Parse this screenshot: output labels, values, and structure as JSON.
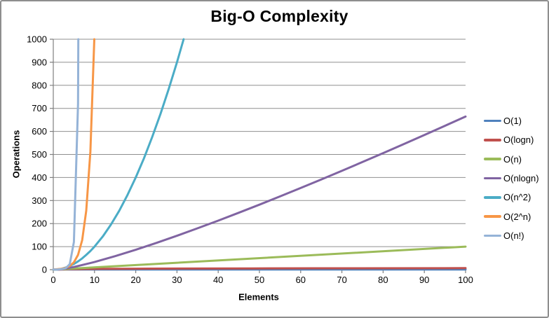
{
  "chart_data": {
    "type": "line",
    "title": "Big-O Complexity",
    "xlabel": "Elements",
    "ylabel": "Operations",
    "xlim": [
      0,
      100
    ],
    "ylim": [
      0,
      1000
    ],
    "xticks": [
      0,
      10,
      20,
      30,
      40,
      50,
      60,
      70,
      80,
      90,
      100
    ],
    "yticks": [
      0,
      100,
      200,
      300,
      400,
      500,
      600,
      700,
      800,
      900,
      1000
    ],
    "grid": "horizontal-only",
    "grid_color": "#8f8f8f",
    "axis_color": "#7f7f7f",
    "tick_label_color": "#000000",
    "legend_position": "right",
    "series": [
      {
        "name": "O(1)",
        "color": "#4F81BD",
        "points": [
          [
            0,
            1
          ],
          [
            100,
            1
          ]
        ]
      },
      {
        "name": "O(logn)",
        "color": "#C0504D",
        "points": [
          [
            1,
            0
          ],
          [
            2,
            1
          ],
          [
            3,
            1.58
          ],
          [
            4,
            2
          ],
          [
            6,
            2.58
          ],
          [
            8,
            3
          ],
          [
            12,
            3.58
          ],
          [
            16,
            4
          ],
          [
            24,
            4.58
          ],
          [
            32,
            5
          ],
          [
            48,
            5.58
          ],
          [
            64,
            6
          ],
          [
            100,
            6.64
          ]
        ]
      },
      {
        "name": "O(n)",
        "color": "#9BBB59",
        "points": [
          [
            0,
            0
          ],
          [
            100,
            100
          ]
        ]
      },
      {
        "name": "O(nlogn)",
        "color": "#8064A2",
        "points": [
          [
            1,
            0
          ],
          [
            2,
            2
          ],
          [
            5,
            11.6
          ],
          [
            10,
            33.2
          ],
          [
            15,
            58.6
          ],
          [
            20,
            86.4
          ],
          [
            25,
            116.1
          ],
          [
            30,
            147.2
          ],
          [
            35,
            179.5
          ],
          [
            40,
            212.9
          ],
          [
            45,
            247.2
          ],
          [
            50,
            282.2
          ],
          [
            55,
            317.9
          ],
          [
            60,
            354.4
          ],
          [
            65,
            391.4
          ],
          [
            70,
            429.0
          ],
          [
            75,
            467.1
          ],
          [
            80,
            505.7
          ],
          [
            85,
            544.8
          ],
          [
            90,
            584.3
          ],
          [
            95,
            624.2
          ],
          [
            100,
            664.4
          ]
        ]
      },
      {
        "name": "O(n^2)",
        "color": "#4BACC6",
        "points": [
          [
            0,
            0
          ],
          [
            1,
            1
          ],
          [
            2,
            4
          ],
          [
            3,
            9
          ],
          [
            4,
            16
          ],
          [
            5,
            25
          ],
          [
            6,
            36
          ],
          [
            7,
            49
          ],
          [
            8,
            64
          ],
          [
            9,
            81
          ],
          [
            10,
            100
          ],
          [
            12,
            144
          ],
          [
            14,
            196
          ],
          [
            16,
            256
          ],
          [
            18,
            324
          ],
          [
            20,
            400
          ],
          [
            22,
            484
          ],
          [
            24,
            576
          ],
          [
            26,
            676
          ],
          [
            28,
            784
          ],
          [
            30,
            900
          ],
          [
            32,
            1024
          ]
        ]
      },
      {
        "name": "O(2^n)",
        "color": "#F79646",
        "points": [
          [
            0,
            1
          ],
          [
            1,
            2
          ],
          [
            2,
            4
          ],
          [
            3,
            8
          ],
          [
            4,
            16
          ],
          [
            5,
            32
          ],
          [
            6,
            64
          ],
          [
            7,
            128
          ],
          [
            8,
            256
          ],
          [
            9,
            512
          ],
          [
            10,
            1024
          ]
        ]
      },
      {
        "name": "O(n!)",
        "color": "#95B3D7",
        "points": [
          [
            0,
            1
          ],
          [
            1,
            1
          ],
          [
            2,
            2
          ],
          [
            3,
            6
          ],
          [
            4,
            24
          ],
          [
            5,
            120
          ],
          [
            6,
            720
          ],
          [
            7,
            5040
          ]
        ]
      }
    ]
  }
}
